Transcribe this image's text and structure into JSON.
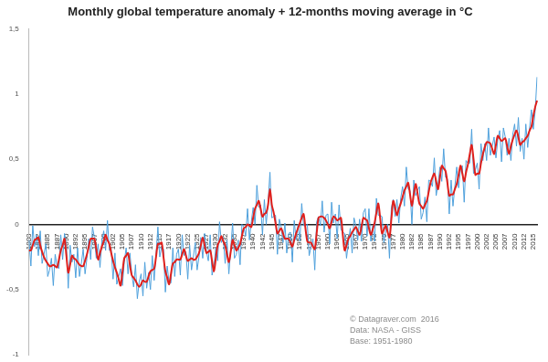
{
  "chart_data": {
    "type": "line",
    "title": "Monthly global temperature anomaly + 12-months moving average in °C",
    "annotations": [
      "© Datagraver.com  2016",
      "Data: NASA - GISS",
      "Base: 1951-1980"
    ],
    "categories": [
      "1880",
      null,
      null,
      null,
      null,
      "1882",
      null,
      null,
      null,
      null,
      "1885",
      null,
      null,
      null,
      null,
      "1887",
      null,
      null,
      null,
      null,
      "1890",
      null,
      null,
      null,
      null,
      "1892",
      null,
      null,
      null,
      null,
      "1895",
      null,
      null,
      null,
      null,
      "1897",
      null,
      null,
      null,
      null,
      "1900",
      null,
      null,
      null,
      null,
      "1902",
      null,
      null,
      null,
      null,
      "1905",
      null,
      null,
      null,
      null,
      "1907",
      null,
      null,
      null,
      null,
      "1910",
      null,
      null,
      null,
      null,
      "1912",
      null,
      null,
      null,
      null,
      "1915",
      null,
      null,
      null,
      null,
      "1917",
      null,
      null,
      null,
      null,
      "1920",
      null,
      null,
      null,
      null,
      "1922",
      null,
      null,
      null,
      null,
      "1925",
      null,
      null,
      null,
      null,
      "1927",
      null,
      null,
      null,
      null,
      "1930",
      null,
      null,
      null,
      null,
      "1932",
      null,
      null,
      null,
      null,
      "1935",
      null,
      null,
      null,
      null,
      "1937",
      null,
      null,
      null,
      null,
      "1940",
      null,
      null,
      null,
      null,
      "1942",
      null,
      null,
      null,
      null,
      "1945",
      null,
      null,
      null,
      null,
      "1947",
      null,
      null,
      null,
      null,
      "1950",
      null,
      null,
      null,
      null,
      "1952",
      null,
      null,
      null,
      null,
      "1955",
      null,
      null,
      null,
      null,
      "1957",
      null,
      null,
      null,
      null,
      "1960",
      null,
      null,
      null,
      null,
      "1962",
      null,
      null,
      null,
      null,
      "1965",
      null,
      null,
      null,
      null,
      "1967",
      null,
      null,
      null,
      null,
      "1970",
      null,
      null,
      null,
      null,
      "1972",
      null,
      null,
      null,
      null,
      "1975",
      null,
      null,
      null,
      null,
      "1977",
      null,
      null,
      null,
      null,
      "1980",
      null,
      null,
      null,
      null,
      "1982",
      null,
      null,
      null,
      null,
      "1985",
      null,
      null,
      null,
      null,
      "1987",
      null,
      null,
      null,
      null,
      "1990",
      null,
      null,
      null,
      null,
      "1992",
      null,
      null,
      null,
      null,
      "1995",
      null,
      null,
      null,
      null,
      "1997",
      null,
      null,
      null,
      null,
      "2000",
      null,
      null,
      null,
      null,
      "2002",
      null,
      null,
      null,
      null,
      "2005",
      null,
      null,
      null,
      null,
      "2007",
      null,
      null,
      null,
      null,
      "2010",
      null,
      null,
      null,
      null,
      "2012",
      null,
      null,
      null,
      null,
      "2015",
      null,
      null
    ],
    "series": [
      {
        "color": "#4ea0dc",
        "values": [
          -0.12,
          -0.32,
          -0.01,
          -0.17,
          -0.08,
          -0.24,
          -0.05,
          -0.3,
          -0.23,
          -0.15,
          -0.4,
          -0.35,
          -0.26,
          -0.47,
          -0.23,
          -0.32,
          -0.34,
          -0.08,
          -0.27,
          -0.07,
          -0.16,
          -0.49,
          -0.16,
          -0.29,
          -0.23,
          -0.41,
          -0.18,
          -0.4,
          -0.3,
          -0.19,
          -0.38,
          -0.26,
          -0.11,
          -0.27,
          -0.02,
          -0.1,
          -0.26,
          -0.15,
          -0.33,
          -0.13,
          -0.05,
          -0.2,
          0.03,
          -0.2,
          -0.19,
          -0.42,
          -0.22,
          -0.46,
          -0.4,
          -0.34,
          -0.47,
          -0.29,
          -0.18,
          -0.38,
          -0.22,
          -0.38,
          -0.48,
          -0.31,
          -0.57,
          -0.44,
          -0.38,
          -0.55,
          -0.29,
          -0.49,
          -0.37,
          -0.5,
          -0.24,
          -0.43,
          -0.23,
          -0.02,
          -0.25,
          -0.17,
          -0.19,
          -0.52,
          -0.32,
          -0.45,
          -0.45,
          -0.18,
          -0.4,
          -0.23,
          -0.19,
          -0.39,
          -0.08,
          -0.24,
          -0.21,
          -0.42,
          -0.16,
          -0.35,
          -0.25,
          -0.14,
          -0.35,
          -0.25,
          -0.1,
          -0.26,
          -0.07,
          -0.21,
          -0.28,
          -0.08,
          -0.39,
          -0.32,
          -0.18,
          -0.28,
          0.02,
          -0.14,
          -0.1,
          -0.3,
          -0.12,
          -0.38,
          -0.19,
          0.01,
          -0.26,
          -0.23,
          -0.12,
          -0.31,
          0,
          -0.02,
          -0.09,
          0.12,
          -0.12,
          0.02,
          0.13,
          0,
          0.3,
          0.13,
          0.15,
          -0.08,
          0.19,
          0,
          0.17,
          0.4,
          0.05,
          0.06,
          0.07,
          -0.23,
          0.04,
          -0.02,
          -0.14,
          0.01,
          -0.22,
          -0.07,
          -0.06,
          -0.29,
          0.03,
          -0.12,
          0,
          -0.13,
          0.16,
          -0.01,
          -0.01,
          0,
          -0.24,
          -0.17,
          -0.11,
          -0.35,
          0.02,
          0.06,
          -0.01,
          0.18,
          -0.06,
          0.07,
          0.08,
          -0.15,
          0.17,
          0.01,
          0.08,
          -0.11,
          0.15,
          -0.04,
          -0.06,
          -0.07,
          -0.26,
          -0.14,
          -0.03,
          -0.22,
          0.05,
          -0.01,
          -0.12,
          0.04,
          -0.13,
          0.09,
          0.12,
          -0.09,
          0.12,
          -0.13,
          -0.01,
          -0.13,
          0.2,
          0.07,
          0.07,
          0.06,
          -0.14,
          -0.04,
          0,
          -0.26,
          0.13,
          0.19,
          0.06,
          0.19,
          0.01,
          0.2,
          0.29,
          0.14,
          0.44,
          0.27,
          0.26,
          0,
          0.34,
          0.22,
          0.26,
          0.29,
          0.04,
          0.09,
          0.21,
          0.02,
          0.34,
          0.33,
          0.29,
          0.51,
          0.22,
          0.31,
          0.44,
          0.33,
          0.58,
          0.36,
          0.35,
          0.08,
          0.34,
          0.14,
          0.29,
          0.44,
          0.28,
          0.42,
          0.45,
          0.17,
          0.49,
          0.47,
          0.47,
          0.73,
          0.39,
          0.42,
          0.47,
          0.27,
          0.62,
          0.49,
          0.62,
          0.49,
          0.74,
          0.53,
          0.6,
          0.67,
          0.51,
          0.65,
          0.72,
          0.48,
          0.74,
          0.67,
          0.53,
          0.66,
          0.49,
          0.69,
          0.77,
          0.6,
          0.82,
          0.56,
          0.66,
          0.5,
          0.77,
          0.59,
          0.74,
          0.88,
          0.73,
          0.87,
          1.13
        ]
      },
      {
        "color": "#e0201c",
        "values": [
          -0.2,
          -0.2,
          -0.16,
          -0.12,
          -0.11,
          -0.1,
          -0.16,
          -0.21,
          -0.25,
          -0.28,
          -0.3,
          -0.32,
          -0.32,
          -0.31,
          -0.32,
          -0.33,
          -0.27,
          -0.2,
          -0.16,
          -0.11,
          -0.24,
          -0.37,
          -0.31,
          -0.24,
          -0.26,
          -0.27,
          -0.29,
          -0.31,
          -0.32,
          -0.32,
          -0.28,
          -0.23,
          -0.17,
          -0.11,
          -0.11,
          -0.11,
          -0.19,
          -0.27,
          -0.22,
          -0.17,
          -0.13,
          -0.08,
          -0.12,
          -0.15,
          -0.22,
          -0.28,
          -0.33,
          -0.37,
          -0.42,
          -0.47,
          -0.37,
          -0.26,
          -0.24,
          -0.22,
          -0.31,
          -0.39,
          -0.41,
          -0.43,
          -0.46,
          -0.48,
          -0.46,
          -0.43,
          -0.44,
          -0.44,
          -0.4,
          -0.36,
          -0.35,
          -0.34,
          -0.25,
          -0.15,
          -0.15,
          -0.14,
          -0.25,
          -0.36,
          -0.41,
          -0.46,
          -0.38,
          -0.3,
          -0.29,
          -0.27,
          -0.27,
          -0.27,
          -0.23,
          -0.19,
          -0.24,
          -0.28,
          -0.27,
          -0.26,
          -0.27,
          -0.27,
          -0.25,
          -0.22,
          -0.16,
          -0.1,
          -0.16,
          -0.22,
          -0.21,
          -0.2,
          -0.28,
          -0.36,
          -0.26,
          -0.16,
          -0.13,
          -0.09,
          -0.13,
          -0.16,
          -0.23,
          -0.29,
          -0.21,
          -0.12,
          -0.16,
          -0.2,
          -0.18,
          -0.15,
          -0.09,
          -0.03,
          -0.02,
          0,
          -0.01,
          -0.02,
          0.05,
          0.12,
          0.15,
          0.18,
          0.12,
          0.06,
          0.08,
          0.09,
          0.15,
          0.27,
          0.15,
          0.09,
          0.01,
          -0.07,
          -0.05,
          -0.03,
          -0.07,
          -0.11,
          -0.11,
          -0.11,
          -0.14,
          -0.17,
          -0.12,
          -0.07,
          -0.03,
          0.01,
          0.05,
          0.08,
          -0.03,
          -0.13,
          -0.14,
          -0.14,
          -0.17,
          -0.19,
          -0.07,
          0.05,
          0.06,
          0.06,
          0.05,
          0.03,
          0,
          -0.03,
          0.02,
          0.06,
          0.05,
          0.03,
          0.04,
          0.05,
          -0.08,
          -0.2,
          -0.16,
          -0.11,
          -0.09,
          -0.06,
          -0.04,
          -0.02,
          -0.05,
          -0.08,
          -0.02,
          0.05,
          0.04,
          0.03,
          -0.03,
          -0.08,
          -0.04,
          0.01,
          0.09,
          0.16,
          0.05,
          -0.07,
          -0.04,
          -0.01,
          -0.06,
          -0.1,
          0.04,
          0.18,
          0.13,
          0.07,
          0.12,
          0.16,
          0.21,
          0.26,
          0.29,
          0.32,
          0.23,
          0.14,
          0.23,
          0.31,
          0.24,
          0.16,
          0.14,
          0.12,
          0.15,
          0.18,
          0.25,
          0.32,
          0.36,
          0.39,
          0.33,
          0.27,
          0.36,
          0.45,
          0.43,
          0.41,
          0.32,
          0.22,
          0.23,
          0.23,
          0.27,
          0.31,
          0.38,
          0.45,
          0.39,
          0.33,
          0.4,
          0.46,
          0.54,
          0.61,
          0.5,
          0.38,
          0.39,
          0.39,
          0.47,
          0.54,
          0.59,
          0.63,
          0.63,
          0.62,
          0.58,
          0.54,
          0.61,
          0.68,
          0.66,
          0.64,
          0.65,
          0.66,
          0.6,
          0.54,
          0.6,
          0.65,
          0.69,
          0.72,
          0.67,
          0.61,
          0.63,
          0.64,
          0.66,
          0.68,
          0.72,
          0.75,
          0.83,
          0.9,
          0.95
        ]
      }
    ],
    "ylim": [
      -1,
      1.5
    ],
    "yticks": [
      -1,
      {
        "value": -0.5,
        "label": "-0,5"
      },
      0,
      {
        "value": 0.5,
        "label": "0,5"
      },
      1,
      {
        "value": 1.5,
        "label": "1,5"
      }
    ],
    "grid": false,
    "tick_labels": true
  }
}
